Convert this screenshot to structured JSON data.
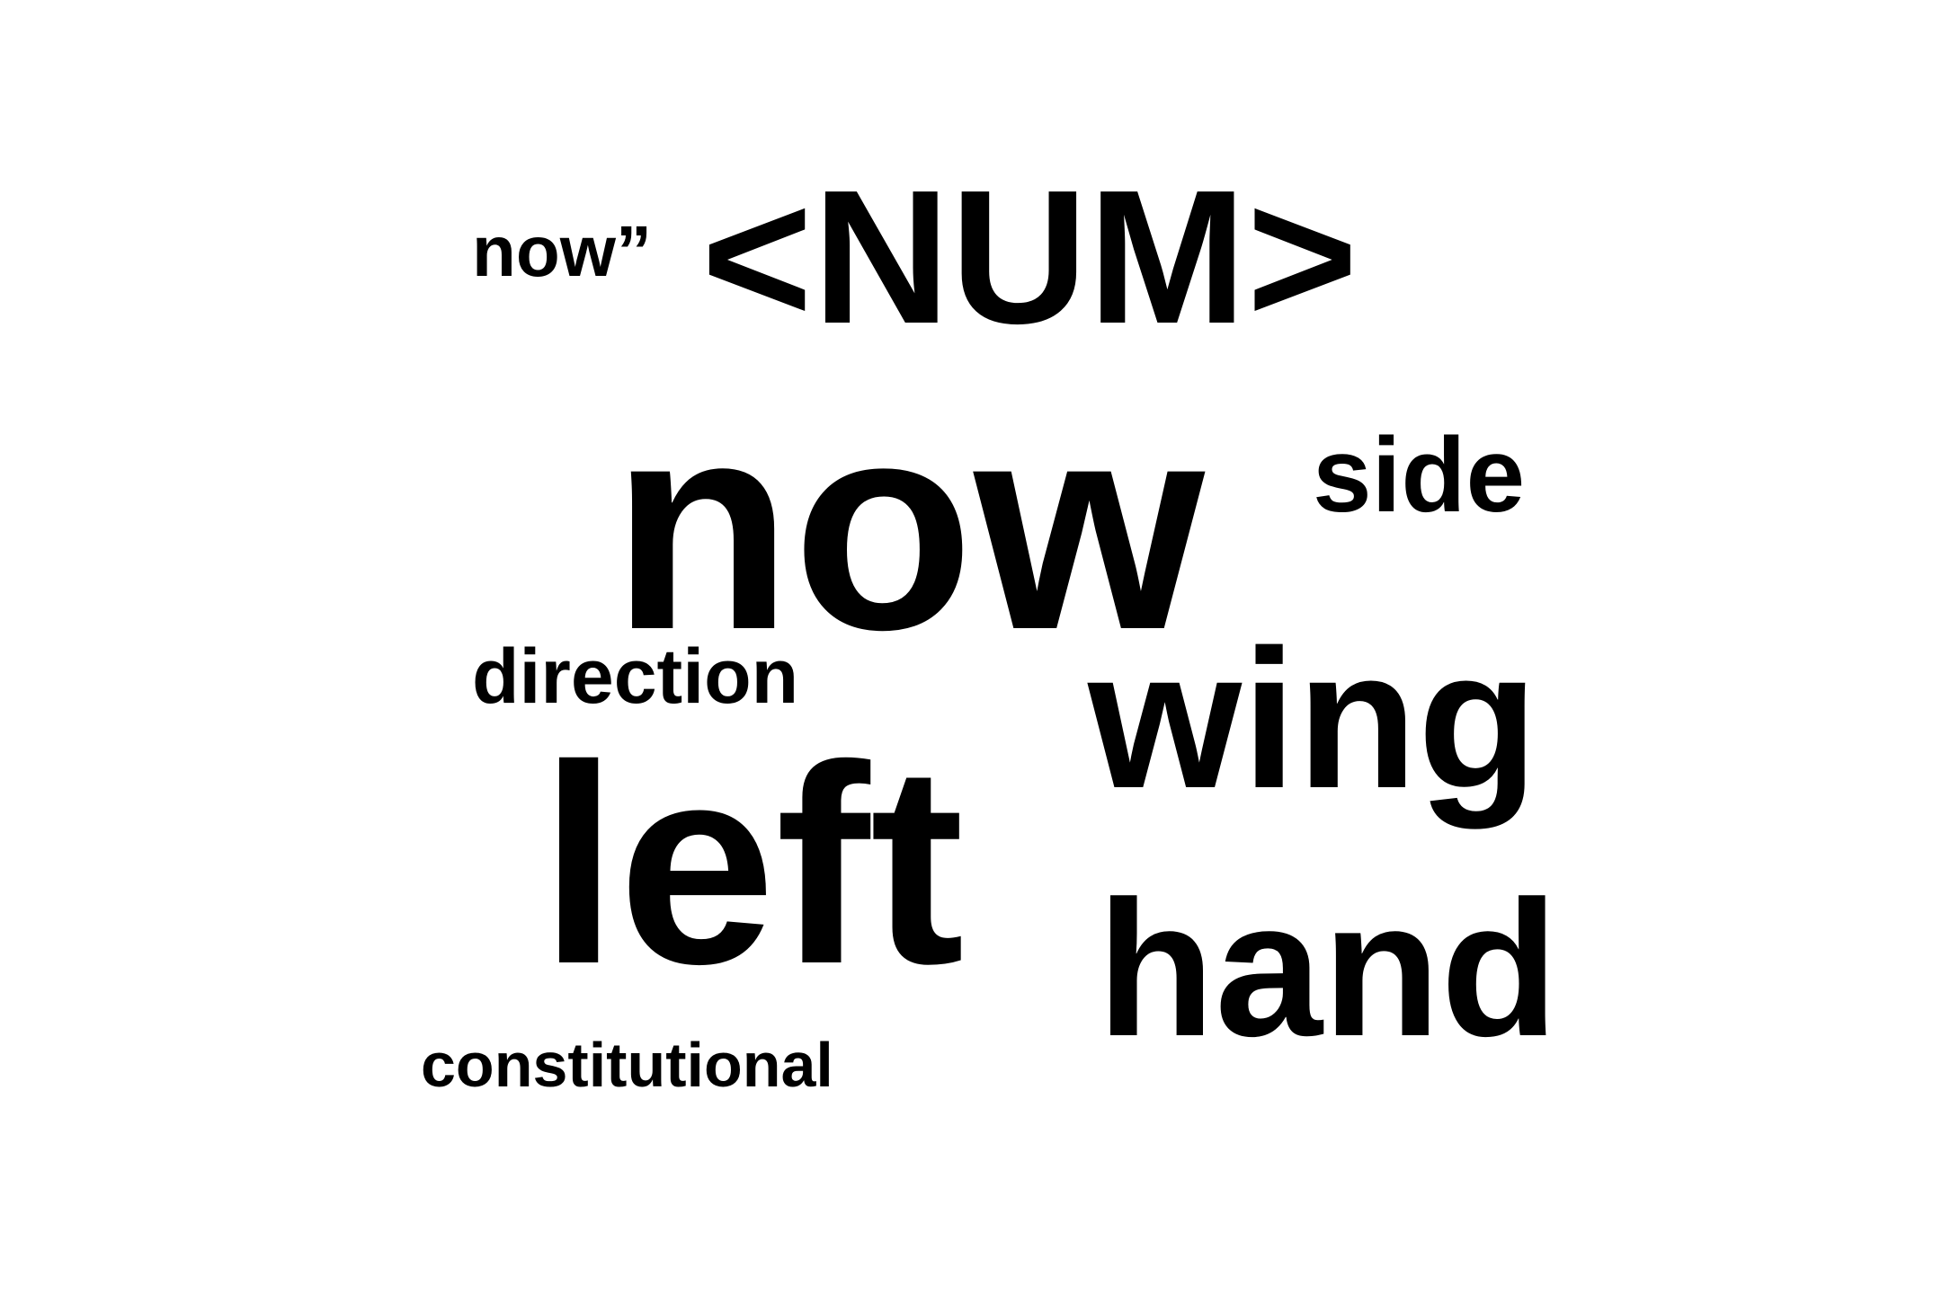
{
  "words": [
    {
      "id": "num",
      "text": "<NUM>"
    },
    {
      "id": "now_quote",
      "text": "now”"
    },
    {
      "id": "now",
      "text": "now"
    },
    {
      "id": "side",
      "text": "side"
    },
    {
      "id": "direction",
      "text": "direction"
    },
    {
      "id": "wing",
      "text": "wing"
    },
    {
      "id": "left",
      "text": "left"
    },
    {
      "id": "hand",
      "text": "hand"
    },
    {
      "id": "constitutional",
      "text": "constitutional"
    }
  ],
  "colors": {
    "background": "#ffffff",
    "text": "#000000"
  }
}
